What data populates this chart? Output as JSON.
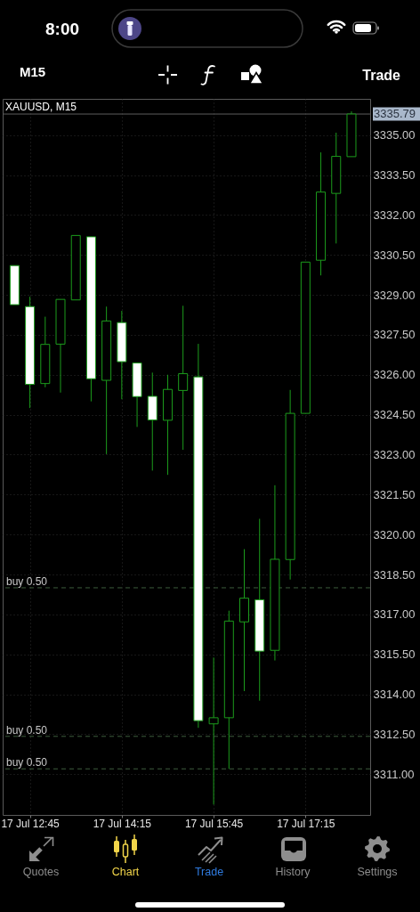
{
  "chart_data": {
    "type": "candlestick",
    "title": "XAUUSD, M15",
    "categories": [
      null,
      "17 Jul 12:45",
      null,
      null,
      null,
      null,
      null,
      "17 Jul 14:15",
      null,
      null,
      null,
      null,
      null,
      "17 Jul 15:45",
      null,
      null,
      null,
      null,
      null,
      "17 Jul 17:15",
      null,
      null,
      null
    ],
    "ohlc": [
      [
        3330.1,
        3330.1,
        3328.63,
        3328.63
      ],
      [
        3328.56,
        3328.93,
        3324.75,
        3325.64
      ],
      [
        3325.67,
        3328.18,
        3325.53,
        3327.14
      ],
      [
        3327.15,
        3328.83,
        3325.33,
        3328.83
      ],
      [
        3328.81,
        3331.23,
        3328.81,
        3331.23
      ],
      [
        3331.18,
        3331.18,
        3325.0,
        3325.85
      ],
      [
        3325.79,
        3328.56,
        3323.02,
        3328.02
      ],
      [
        3327.96,
        3328.4,
        3325.08,
        3326.49
      ],
      [
        3326.44,
        3326.44,
        3324.04,
        3325.18
      ],
      [
        3325.19,
        3326.08,
        3322.4,
        3324.3
      ],
      [
        3324.29,
        3326.0,
        3322.24,
        3325.45
      ],
      [
        3325.41,
        3328.59,
        3323.18,
        3326.04
      ],
      [
        3325.92,
        3327.16,
        3312.74,
        3313.01
      ],
      [
        3312.89,
        3315.38,
        3309.86,
        3313.12
      ],
      [
        3313.12,
        3317.14,
        3311.2,
        3316.75
      ],
      [
        3316.72,
        3319.45,
        3314.12,
        3317.61
      ],
      [
        3317.55,
        3320.59,
        3313.76,
        3315.62
      ],
      [
        3315.65,
        3321.85,
        3315.27,
        3319.07
      ],
      [
        3319.06,
        3325.43,
        3318.31,
        3324.55
      ],
      [
        3324.55,
        3330.23,
        3324.55,
        3330.23
      ],
      [
        3330.3,
        3334.35,
        3329.73,
        3332.86
      ],
      [
        3332.81,
        3335.09,
        3330.93,
        3334.2
      ],
      [
        3334.19,
        3335.89,
        3334.19,
        3335.79
      ]
    ],
    "color": "#1c9c1c",
    "colors": [
      "#ffffff",
      "#ffffff",
      "#000000",
      "#000000",
      "#000000",
      "#ffffff",
      "#000000",
      "#ffffff",
      "#ffffff",
      "#ffffff",
      "#000000",
      "#000000",
      "#ffffff",
      "#000000",
      "#000000",
      "#000000",
      "#ffffff",
      "#000000",
      "#000000",
      "#000000",
      "#000000",
      "#000000",
      "#000000"
    ],
    "ylim": [
      3309.47,
      3336.36
    ],
    "yticks": [
      {
        "value": 3311,
        "label": "3311.00"
      },
      {
        "value": 3312.5,
        "label": "3312.50"
      },
      {
        "value": 3314,
        "label": "3314.00"
      },
      {
        "value": 3315.5,
        "label": "3315.50"
      },
      {
        "value": 3317,
        "label": "3317.00"
      },
      {
        "value": 3318.5,
        "label": "3318.50"
      },
      {
        "value": 3320,
        "label": "3320.00"
      },
      {
        "value": 3321.5,
        "label": "3321.50"
      },
      {
        "value": 3323,
        "label": "3323.00"
      },
      {
        "value": 3324.5,
        "label": "3324.50"
      },
      {
        "value": 3326,
        "label": "3326.00"
      },
      {
        "value": 3327.5,
        "label": "3327.50"
      },
      {
        "value": 3329,
        "label": "3329.00"
      },
      {
        "value": 3330.5,
        "label": "3330.50"
      },
      {
        "value": 3332,
        "label": "3332.00"
      },
      {
        "value": 3333.5,
        "label": "3333.50"
      },
      {
        "value": 3335,
        "label": "3335.00"
      }
    ],
    "grid": true,
    "ref_lines": [
      {
        "axis": "y",
        "value": 3335.79,
        "label": "3335.79",
        "color": "#5c5c5c",
        "line_style": "solid"
      },
      {
        "axis": "y",
        "value": 3318.0,
        "label": "buy 0.50",
        "color": "#3d5c3d",
        "line_style": "dashed"
      },
      {
        "axis": "y",
        "value": 3312.42,
        "label": "buy 0.50",
        "color": "#3d5c3d",
        "line_style": "dashed"
      },
      {
        "axis": "y",
        "value": 3311.2,
        "label": "buy 0.50",
        "color": "#3d5c3d",
        "line_style": "dashed"
      }
    ],
    "annotations": [
      "8:00",
      "M15",
      "Trade",
      "Quotes",
      "Chart",
      "Trade",
      "History",
      "Settings"
    ]
  }
}
